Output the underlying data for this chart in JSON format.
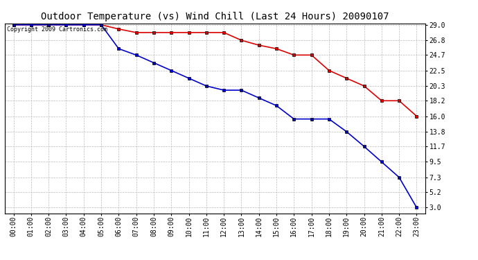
{
  "title": "Outdoor Temperature (vs) Wind Chill (Last 24 Hours) 20090107",
  "copyright": "Copyright 2009 Cartronics.com",
  "x_labels": [
    "00:00",
    "01:00",
    "02:00",
    "03:00",
    "04:00",
    "05:00",
    "06:00",
    "07:00",
    "08:00",
    "09:00",
    "10:00",
    "11:00",
    "12:00",
    "13:00",
    "14:00",
    "15:00",
    "16:00",
    "17:00",
    "18:00",
    "19:00",
    "20:00",
    "21:00",
    "22:00",
    "23:00"
  ],
  "temp_data": [
    29.0,
    29.0,
    29.0,
    29.0,
    29.0,
    29.0,
    28.4,
    27.9,
    27.9,
    27.9,
    27.9,
    27.9,
    27.9,
    26.8,
    26.1,
    25.6,
    24.7,
    24.7,
    22.5,
    21.4,
    20.3,
    18.2,
    18.2,
    16.0
  ],
  "wind_chill_data": [
    29.0,
    29.0,
    29.0,
    29.0,
    29.0,
    29.0,
    25.6,
    24.7,
    23.6,
    22.5,
    21.4,
    20.3,
    19.7,
    19.7,
    18.6,
    17.5,
    15.6,
    15.6,
    15.6,
    13.8,
    11.7,
    9.5,
    7.3,
    3.0
  ],
  "ylim_min": 3.0,
  "ylim_max": 29.0,
  "yticks": [
    3.0,
    5.2,
    7.3,
    9.5,
    11.7,
    13.8,
    16.0,
    18.2,
    20.3,
    22.5,
    24.7,
    26.8,
    29.0
  ],
  "temp_color": "#dd0000",
  "wind_chill_color": "#0000cc",
  "marker": "s",
  "marker_size": 3,
  "line_width": 1.2,
  "bg_color": "#ffffff",
  "plot_bg_color": "#ffffff",
  "grid_color": "#bbbbbb",
  "title_fontsize": 10,
  "tick_fontsize": 7,
  "copyright_fontsize": 6
}
